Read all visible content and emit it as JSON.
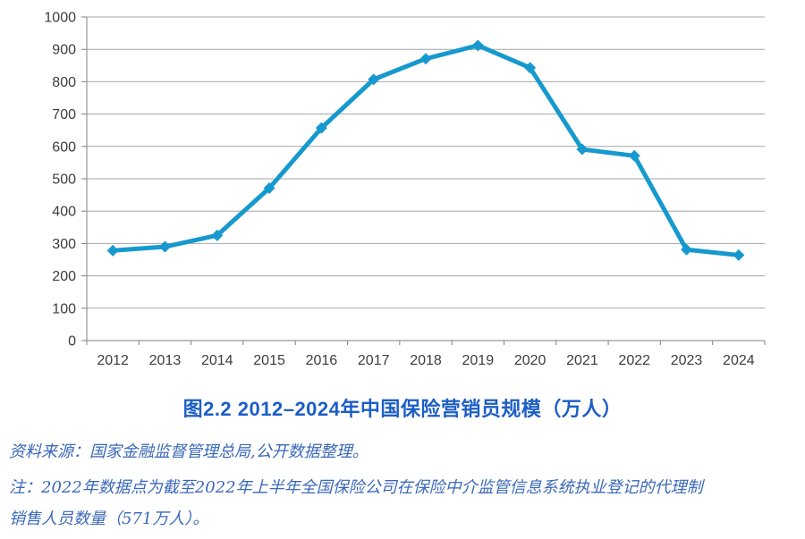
{
  "figure": {
    "title": "图2.2 2012–2024年中国保险营销员规模（万人）",
    "source_note": "资料来源：国家金融监督管理总局,公开数据整理。",
    "note_line1": "注：2022年数据点为截至2022年上半年全国保险公司在保险中介监管信息系统执业登记的代理制",
    "note_line2": "销售人员数量（571万人）。"
  },
  "chart_data": {
    "type": "line",
    "title": "图2.2 2012–2024年中国保险营销员规模（万人）",
    "xlabel": "",
    "ylabel": "",
    "categories": [
      "2012",
      "2013",
      "2014",
      "2015",
      "2016",
      "2017",
      "2018",
      "2019",
      "2020",
      "2021",
      "2022",
      "2023",
      "2024"
    ],
    "series": [
      {
        "name": "中国保险营销员规模（万人）",
        "values": [
          278,
          290,
          325,
          471,
          657,
          807,
          871,
          912,
          843,
          591,
          571,
          281,
          264
        ]
      }
    ],
    "ylim": [
      0,
      1000
    ],
    "y_ticks": [
      0,
      100,
      200,
      300,
      400,
      500,
      600,
      700,
      800,
      900,
      1000
    ],
    "grid": true,
    "legend_position": "none",
    "marker": "diamond",
    "line_color": "#1699ce",
    "grid_color": "#a6a6a6",
    "axis_color": "#7f7f7f",
    "tick_label_color": "#3d3d3d"
  },
  "colors": {
    "title_blue": "#1c5ec6",
    "footnote_blue": "#3a68b8",
    "background": "#ffffff"
  }
}
